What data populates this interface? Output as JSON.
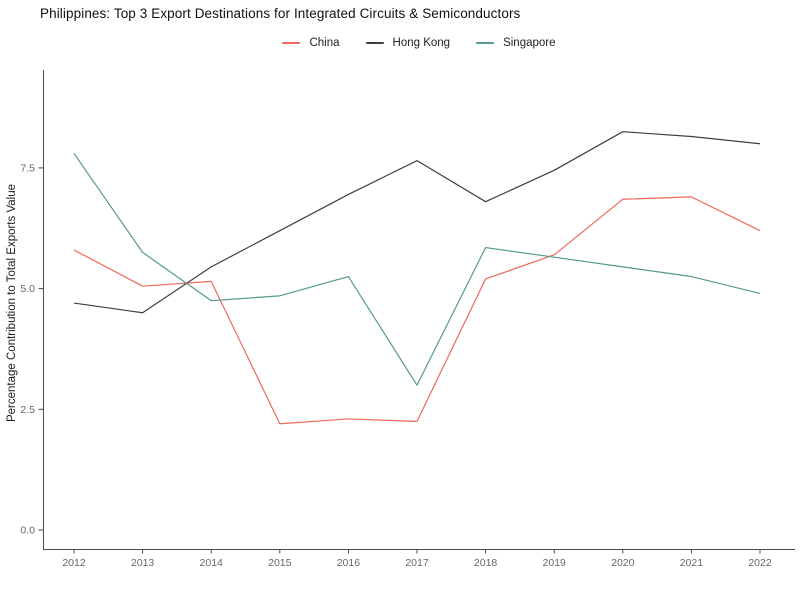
{
  "title": "Philippines: Top 3 Export Destinations for Integrated Circuits & Semiconductors",
  "chart_data": {
    "type": "line",
    "title": "Philippines: Top 3 Export Destinations for Integrated Circuits & Semiconductors",
    "x": [
      2012,
      2013,
      2014,
      2015,
      2016,
      2017,
      2018,
      2019,
      2020,
      2021,
      2022
    ],
    "series": [
      {
        "name": "China",
        "color": "#f0685e",
        "values": [
          5.8,
          5.05,
          5.15,
          2.2,
          2.3,
          2.25,
          5.2,
          5.7,
          6.85,
          6.9,
          6.2
        ]
      },
      {
        "name": "Hong Kong",
        "color": "#3f3f3f",
        "values": [
          4.7,
          4.5,
          5.45,
          6.2,
          6.95,
          7.65,
          6.8,
          7.45,
          8.25,
          8.15,
          8.0
        ]
      },
      {
        "name": "Singapore",
        "color": "#559a8e",
        "values": [
          7.8,
          5.75,
          4.75,
          4.85,
          5.25,
          3.0,
          5.85,
          5.65,
          5.45,
          5.25,
          4.9
        ]
      }
    ],
    "xlabel": "",
    "ylabel": "Percentage Contribution to Total Exports Value",
    "y_ticks": [
      0,
      2.5,
      5,
      7.5
    ],
    "y_tick_labels": [
      "0.0",
      "2.5",
      "5.0",
      "7.5"
    ],
    "x_tick_labels": [
      "2012",
      "2013",
      "2014",
      "2015",
      "2016",
      "2017",
      "2018",
      "2019",
      "2020",
      "2021",
      "2022"
    ],
    "ylim": [
      -0.4,
      9.5
    ],
    "grid": false,
    "legend_position": "top-center",
    "colors": {
      "axis_line": "#4a4a4a",
      "tick_text": "#666666",
      "axis_label_text": "#1a1a1a",
      "title_text": "#111111"
    }
  }
}
